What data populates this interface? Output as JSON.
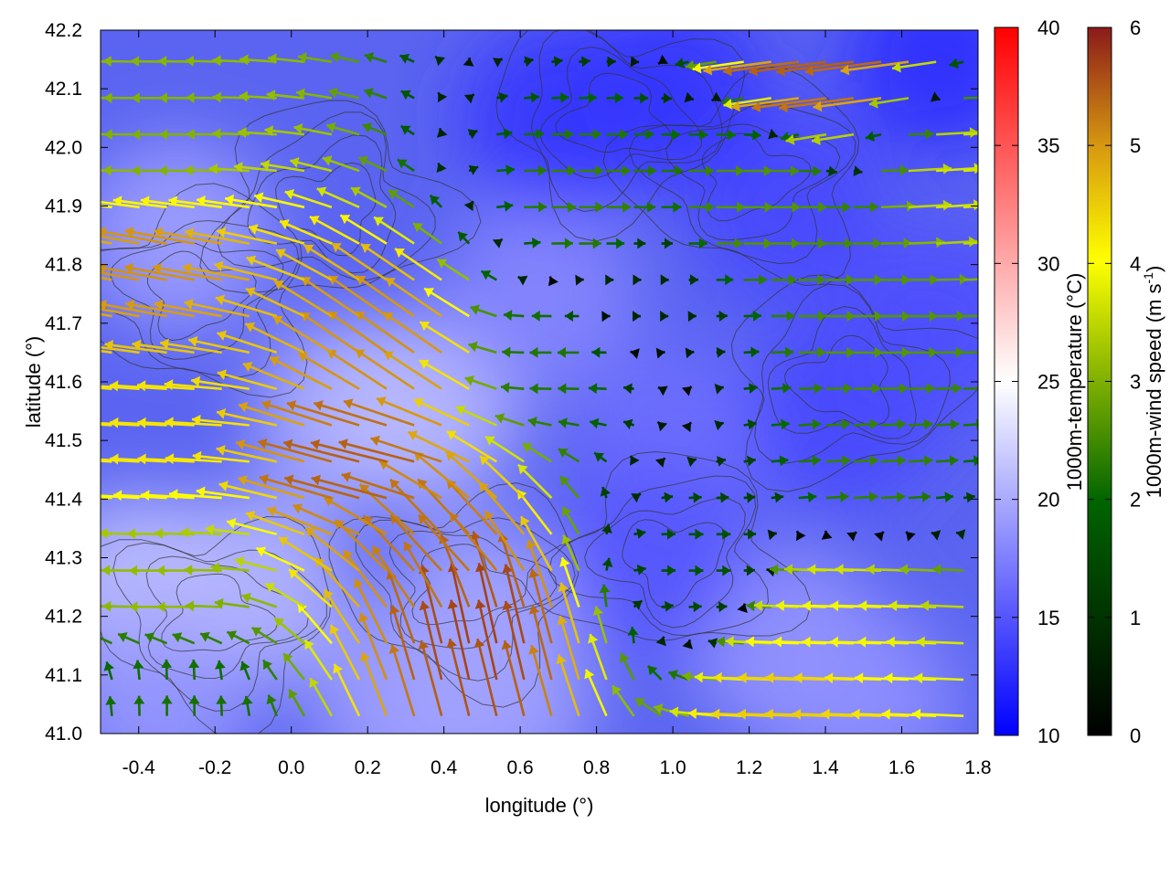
{
  "chart_data": {
    "type": "heatmap",
    "title": "",
    "xlabel": "longitude (°)",
    "ylabel": "latitude (°)",
    "xlim": [
      -0.5,
      1.8
    ],
    "ylim": [
      41.0,
      42.2
    ],
    "x_ticks": [
      -0.4,
      -0.2,
      0.0,
      0.2,
      0.4,
      0.6,
      0.8,
      1.0,
      1.2,
      1.4,
      1.6,
      1.8
    ],
    "x_tick_labels": [
      "-0.4",
      "-0.2",
      "0.0",
      "0.2",
      "0.4",
      "0.6",
      "0.8",
      "1.0",
      "1.2",
      "1.4",
      "1.6",
      "1.8"
    ],
    "y_ticks": [
      41.0,
      41.1,
      41.2,
      41.3,
      41.4,
      41.5,
      41.6,
      41.7,
      41.8,
      41.9,
      42.0,
      42.1,
      42.2
    ],
    "y_tick_labels": [
      "41.0",
      "41.1",
      "41.2",
      "41.3",
      "41.4",
      "41.5",
      "41.6",
      "41.7",
      "41.8",
      "41.9",
      "42.0",
      "42.1",
      "42.2"
    ],
    "grid": false,
    "layers": [
      {
        "kind": "filled-field",
        "quantity": "temperature",
        "colormap": [
          "#0000ff",
          "#ffffff",
          "#ff0000"
        ]
      },
      {
        "kind": "contour",
        "quantity": "terrain",
        "color": "#333333"
      },
      {
        "kind": "vector-field",
        "quantity": "wind",
        "colormap": [
          "#000000",
          "#006400",
          "#ffff00",
          "#8b1a1a"
        ]
      }
    ],
    "colorbars": [
      {
        "label": "1000m-temperature (°C)",
        "range": [
          10,
          40
        ],
        "ticks": [
          10,
          15,
          20,
          25,
          30,
          35,
          40
        ],
        "tick_labels": [
          "10",
          "15",
          "20",
          "25",
          "30",
          "35",
          "40"
        ],
        "colors": [
          "#0000ff",
          "#ffffff",
          "#ff0000"
        ]
      },
      {
        "label_main": "1000m-wind speed (m s",
        "label_sup": "-1",
        "label_end": ")",
        "range": [
          0,
          6
        ],
        "ticks": [
          0,
          1,
          2,
          3,
          4,
          5,
          6
        ],
        "tick_labels": [
          "0",
          "1",
          "2",
          "3",
          "4",
          "5",
          "6"
        ],
        "colors": [
          "#000000",
          "#006400",
          "#7fb000",
          "#ffff00",
          "#d79a10",
          "#8b1a1a"
        ]
      }
    ],
    "temperature_field": [
      {
        "lon": -0.4,
        "lat": 41.25,
        "value": 21.5
      },
      {
        "lon": -0.1,
        "lat": 41.25,
        "value": 21
      },
      {
        "lon": 0.15,
        "lat": 41.55,
        "value": 20.5
      },
      {
        "lon": 0.35,
        "lat": 41.55,
        "value": 21
      },
      {
        "lon": -0.3,
        "lat": 41.85,
        "value": 19.5
      },
      {
        "lon": 0.5,
        "lat": 41.2,
        "value": 20
      },
      {
        "lon": 0.55,
        "lat": 41.05,
        "value": 19.5
      },
      {
        "lon": 0.3,
        "lat": 41.05,
        "value": 19.5
      },
      {
        "lon": -0.35,
        "lat": 41.05,
        "value": 19
      },
      {
        "lon": 1.3,
        "lat": 41.15,
        "value": 19
      },
      {
        "lon": 1.5,
        "lat": 41.05,
        "value": 18.5
      },
      {
        "lon": 0.65,
        "lat": 41.75,
        "value": 18
      },
      {
        "lon": 1.0,
        "lat": 41.5,
        "value": 16.5
      },
      {
        "lon": 0.95,
        "lat": 41.3,
        "value": 15
      },
      {
        "lon": 1.45,
        "lat": 41.55,
        "value": 14
      },
      {
        "lon": 1.3,
        "lat": 41.9,
        "value": 14
      },
      {
        "lon": 0.7,
        "lat": 42.05,
        "value": 13
      },
      {
        "lon": 1.0,
        "lat": 42.1,
        "value": 13
      },
      {
        "lon": 1.7,
        "lat": 42.15,
        "value": 12.5
      },
      {
        "lon": 1.7,
        "lat": 41.7,
        "value": 14.5
      }
    ],
    "wind_field": [
      {
        "lon": -0.3,
        "lat": 41.8,
        "u": -4.8,
        "v": 0.9
      },
      {
        "lon": 0.25,
        "lat": 41.45,
        "u": -5.2,
        "v": 1.3
      },
      {
        "lon": 0.42,
        "lat": 41.3,
        "u": -3.5,
        "v": 3.8
      },
      {
        "lon": 0.5,
        "lat": 41.15,
        "u": -1.2,
        "v": 5.5
      },
      {
        "lon": 0.3,
        "lat": 41.65,
        "u": -4.0,
        "v": 2.8
      },
      {
        "lon": -0.3,
        "lat": 41.5,
        "u": -3.9,
        "v": 0.2
      },
      {
        "lon": -0.3,
        "lat": 41.25,
        "u": -2.6,
        "v": 0
      },
      {
        "lon": -0.3,
        "lat": 42.0,
        "u": -2.4,
        "v": 0
      },
      {
        "lon": -0.3,
        "lat": 41.05,
        "u": 0,
        "v": 1.4
      },
      {
        "lon": 0.7,
        "lat": 41.65,
        "u": -1.5,
        "v": 0
      },
      {
        "lon": 0.75,
        "lat": 41.9,
        "u": 1.7,
        "v": 0
      },
      {
        "lon": 0.9,
        "lat": 41.75,
        "u": 0.5,
        "v": 0
      },
      {
        "lon": 1.2,
        "lat": 41.9,
        "u": 2.0,
        "v": 0
      },
      {
        "lon": 1.5,
        "lat": 41.7,
        "u": 2.0,
        "v": 0
      },
      {
        "lon": 1.4,
        "lat": 41.05,
        "u": -4.2,
        "v": 0.15
      },
      {
        "lon": 1.5,
        "lat": 41.2,
        "u": -3.5,
        "v": 0.1
      },
      {
        "lon": 1.45,
        "lat": 42.15,
        "u": -5.3,
        "v": -0.7
      },
      {
        "lon": 1.05,
        "lat": 41.3,
        "u": 1.0,
        "v": 0
      },
      {
        "lon": 1.5,
        "lat": 41.45,
        "u": 1.7,
        "v": 0.1
      },
      {
        "lon": 1.75,
        "lat": 41.95,
        "u": 3.2,
        "v": 0.2
      }
    ]
  }
}
